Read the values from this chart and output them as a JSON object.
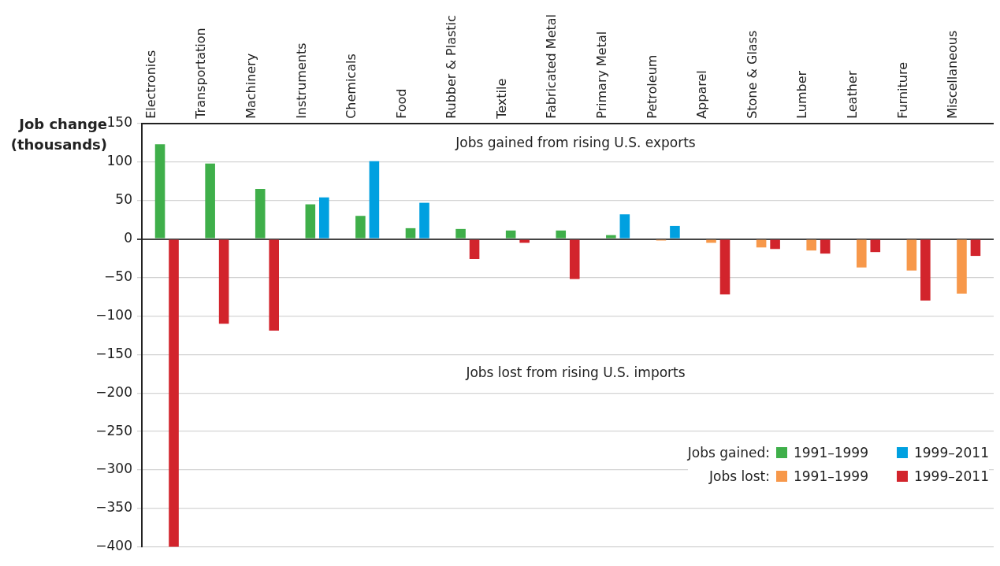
{
  "chart_data": {
    "type": "bar",
    "ylabel": "Job change (thousands)",
    "categories": [
      "Electronics",
      "Transportation",
      "Machinery",
      "Instruments",
      "Chemicals",
      "Food",
      "Rubber & Plastic",
      "Textile",
      "Fabricated Metal",
      "Primary Metal",
      "Petroleum",
      "Apparel",
      "Stone & Glass",
      "Lumber",
      "Leather",
      "Furniture",
      "Miscellaneous"
    ],
    "series": [
      {
        "name": "1991–1999",
        "color": "#3faf4a",
        "values": [
          123,
          98,
          65,
          45,
          30,
          14,
          13,
          11,
          11,
          5,
          null,
          null,
          null,
          null,
          null,
          null,
          null
        ]
      },
      {
        "name": "1991–1999",
        "color": "#f7984a",
        "values": [
          null,
          null,
          null,
          null,
          null,
          null,
          null,
          null,
          null,
          null,
          -2,
          -5,
          -11,
          -15,
          -37,
          -41,
          -71
        ]
      },
      {
        "name": "1999–2011",
        "color": "#00a0e0",
        "values": [
          null,
          null,
          null,
          54,
          101,
          47,
          null,
          null,
          null,
          32,
          17,
          null,
          null,
          null,
          null,
          null,
          null
        ]
      },
      {
        "name": "1999–2011",
        "color": "#d2242c",
        "values": [
          -400,
          -110,
          -119,
          null,
          null,
          null,
          -26,
          -5,
          -52,
          null,
          null,
          -72,
          -13,
          -19,
          -17,
          -80,
          -22
        ]
      }
    ],
    "ylim": [
      -400,
      150
    ],
    "yticks": [
      {
        "value": -400,
        "label": "−400"
      },
      {
        "value": -350,
        "label": "−350"
      },
      {
        "value": -300,
        "label": "−300"
      },
      {
        "value": -250,
        "label": "−250"
      },
      {
        "value": -200,
        "label": "−200"
      },
      {
        "value": -150,
        "label": "−150"
      },
      {
        "value": -100,
        "label": "−100"
      },
      {
        "value": -50,
        "label": "−50"
      },
      0,
      50,
      100,
      150
    ],
    "grid": "y",
    "legend": "bottom right",
    "annotations": [
      "Jobs gained from rising U.S. exports",
      "Jobs lost from rising U.S. imports",
      "Jobs gained:",
      "Jobs lost:"
    ]
  }
}
